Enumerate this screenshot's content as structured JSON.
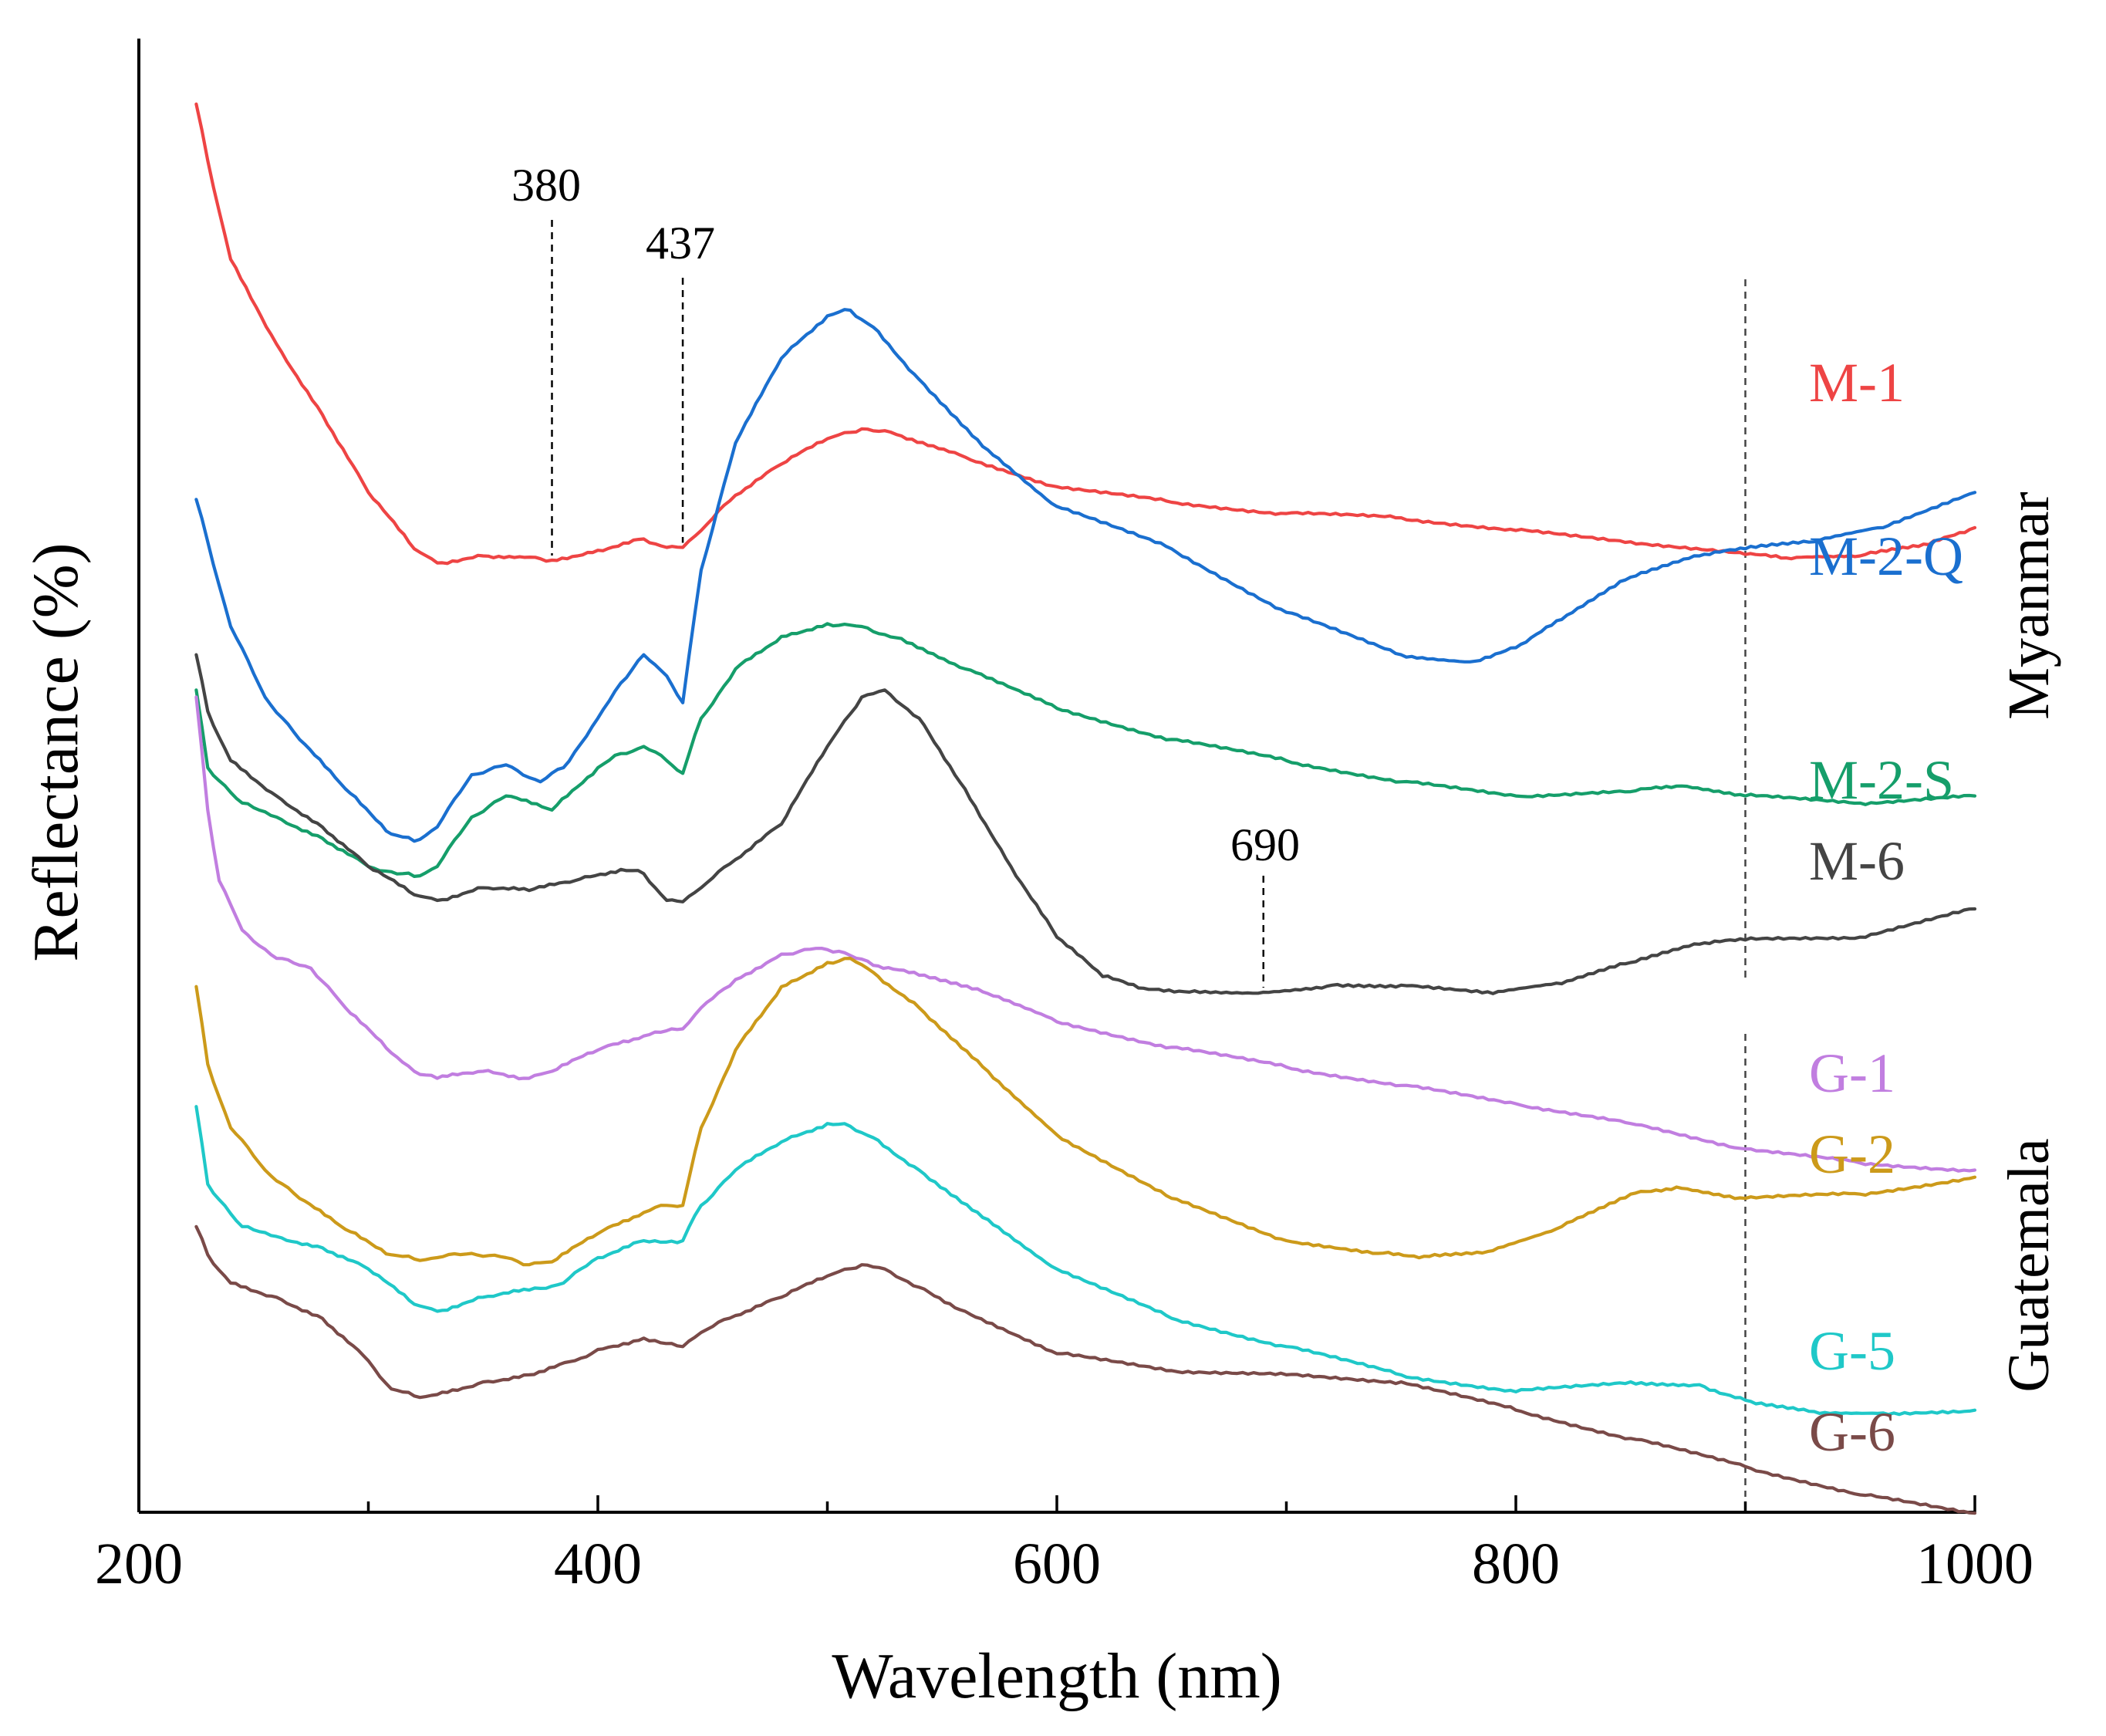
{
  "chart_data": {
    "type": "line",
    "xlabel": "Wavelength (nm)",
    "ylabel": "Reflectance (%)",
    "xlim": [
      200,
      1000
    ],
    "ylim": [
      0,
      100
    ],
    "xticks": [
      200,
      400,
      600,
      800,
      1000
    ],
    "grid": false,
    "ref_line_x": 900,
    "groups": [
      {
        "name": "Myanmar",
        "series": [
          "M-1",
          "M-2-Q",
          "M-2-S",
          "M-6"
        ]
      },
      {
        "name": "Guatemala",
        "series": [
          "G-1",
          "G-2",
          "G-5",
          "G-6"
        ]
      }
    ],
    "series": [
      {
        "name": "M-1",
        "color": "#ee4444",
        "x": [
          225,
          230,
          240,
          260,
          280,
          300,
          320,
          330,
          350,
          375,
          380,
          400,
          420,
          430,
          437,
          445,
          460,
          480,
          500,
          515,
          530,
          560,
          600,
          650,
          700,
          750,
          800,
          850,
          900,
          920,
          950,
          980,
          1000
        ],
        "y": [
          97.0,
          93.0,
          86.0,
          80.0,
          75.0,
          69.5,
          65.5,
          64.5,
          65.0,
          64.8,
          64.7,
          65.4,
          66.2,
          65.6,
          65.6,
          66.8,
          69.3,
          71.5,
          73.3,
          74.0,
          73.6,
          72.0,
          69.9,
          68.8,
          68.0,
          67.7,
          66.8,
          66.0,
          65.1,
          64.8,
          65.0,
          65.8,
          67.0
        ]
      },
      {
        "name": "M-2-Q",
        "color": "#1a6fcf",
        "x": [
          225,
          230,
          240,
          255,
          270,
          290,
          310,
          320,
          330,
          345,
          360,
          375,
          385,
          400,
          410,
          420,
          430,
          437,
          445,
          460,
          480,
          500,
          510,
          520,
          540,
          570,
          600,
          650,
          700,
          750,
          780,
          800,
          820,
          850,
          880,
          900,
          930,
          960,
          1000
        ],
        "y": [
          69.0,
          66.0,
          60.0,
          55.0,
          52.0,
          48.5,
          45.3,
          44.8,
          45.8,
          49.5,
          50.2,
          49.0,
          50.0,
          53.5,
          56.0,
          58.0,
          56.5,
          54.6,
          64.0,
          73.0,
          79.0,
          82.0,
          82.4,
          81.2,
          77.5,
          72.5,
          68.5,
          65.5,
          61.0,
          58.0,
          57.5,
          58.5,
          60.5,
          63.5,
          65.0,
          65.5,
          66.0,
          67.0,
          69.5
        ]
      },
      {
        "name": "M-2-S",
        "color": "#159e6a",
        "x": [
          225,
          230,
          245,
          260,
          280,
          300,
          315,
          320,
          330,
          345,
          360,
          380,
          400,
          410,
          420,
          430,
          437,
          445,
          460,
          480,
          500,
          515,
          530,
          560,
          600,
          650,
          700,
          750,
          800,
          850,
          870,
          900,
          950,
          1000
        ],
        "y": [
          55.5,
          50.0,
          47.5,
          46.5,
          45.0,
          43.0,
          42.5,
          42.3,
          43.0,
          46.5,
          48.0,
          47.0,
          50.0,
          51.0,
          51.5,
          50.5,
          49.6,
          53.5,
          57.0,
          59.3,
          60.2,
          60.0,
          59.2,
          57.0,
          54.2,
          52.0,
          50.5,
          49.0,
          48.0,
          48.3,
          48.7,
          48.0,
          47.5,
          48.0
        ]
      },
      {
        "name": "M-6",
        "color": "#444444",
        "x": [
          225,
          230,
          240,
          260,
          280,
          300,
          320,
          330,
          350,
          370,
          390,
          410,
          420,
          430,
          437,
          445,
          460,
          480,
          500,
          515,
          525,
          540,
          560,
          580,
          600,
          620,
          640,
          660,
          690,
          720,
          750,
          790,
          820,
          850,
          880,
          900,
          950,
          1000
        ],
        "y": [
          58.0,
          54.0,
          50.5,
          48.0,
          45.8,
          43.0,
          41.0,
          40.6,
          41.5,
          41.3,
          42.0,
          42.8,
          42.5,
          40.6,
          40.5,
          41.5,
          43.5,
          46.0,
          51.5,
          55.0,
          55.5,
          53.5,
          48.5,
          43.0,
          38.0,
          35.2,
          34.3,
          34.2,
          34.1,
          34.6,
          34.6,
          34.0,
          34.7,
          36.2,
          37.5,
          37.8,
          38.0,
          40.0
        ]
      },
      {
        "name": "G-1",
        "color": "#c17ee0",
        "x": [
          225,
          230,
          235,
          245,
          260,
          275,
          290,
          310,
          320,
          330,
          350,
          370,
          380,
          400,
          420,
          437,
          445,
          460,
          480,
          495,
          505,
          520,
          540,
          570,
          600,
          650,
          700,
          750,
          800,
          850,
          900,
          950,
          1000
        ],
        "y": [
          55.0,
          47.0,
          42.0,
          38.5,
          36.5,
          35.8,
          33.0,
          29.8,
          28.5,
          28.0,
          28.5,
          28.0,
          28.5,
          30.0,
          31.0,
          31.5,
          33.0,
          35.0,
          36.8,
          37.2,
          37.0,
          36.0,
          35.3,
          34.0,
          32.0,
          30.2,
          28.8,
          27.5,
          26.2,
          24.8,
          23.0,
          22.0,
          21.5
        ]
      },
      {
        "name": "G-2",
        "color": "#cc9a1a",
        "x": [
          225,
          230,
          240,
          255,
          270,
          290,
          310,
          320,
          330,
          345,
          360,
          370,
          380,
          400,
          420,
          430,
          437,
          445,
          460,
          480,
          500,
          510,
          520,
          540,
          570,
          600,
          650,
          700,
          740,
          760,
          790,
          820,
          850,
          870,
          900,
          950,
          1000
        ],
        "y": [
          34.5,
          29.0,
          24.5,
          21.5,
          19.5,
          17.3,
          15.5,
          15.2,
          15.3,
          15.6,
          15.3,
          14.8,
          15.0,
          17.0,
          18.5,
          19.0,
          19.0,
          24.5,
          30.0,
          34.5,
          36.2,
          36.5,
          35.5,
          33.0,
          28.5,
          24.0,
          19.5,
          16.5,
          15.6,
          15.4,
          15.8,
          17.5,
          19.8,
          20.3,
          19.5,
          19.8,
          21.0
        ]
      },
      {
        "name": "G-5",
        "color": "#1fc8c8",
        "x": [
          225,
          230,
          245,
          260,
          280,
          300,
          320,
          330,
          350,
          370,
          385,
          400,
          420,
          437,
          445,
          460,
          480,
          500,
          510,
          520,
          540,
          570,
          600,
          650,
          700,
          750,
          800,
          850,
          880,
          900,
          930,
          960,
          1000
        ],
        "y": [
          26.0,
          20.5,
          17.5,
          16.8,
          16.0,
          14.5,
          12.0,
          11.5,
          12.5,
          13.0,
          13.5,
          15.3,
          16.5,
          16.5,
          19.0,
          21.5,
          23.5,
          24.8,
          24.6,
          23.8,
          21.5,
          18.0,
          14.5,
          11.0,
          9.0,
          7.0,
          5.8,
          6.5,
          6.3,
          5.2,
          4.4,
          4.3,
          4.5
        ]
      },
      {
        "name": "G-6",
        "color": "#7a4a48",
        "x": [
          225,
          230,
          240,
          260,
          280,
          300,
          310,
          320,
          330,
          350,
          370,
          390,
          400,
          420,
          437,
          445,
          460,
          480,
          500,
          515,
          525,
          540,
          560,
          600,
          650,
          700,
          750,
          800,
          850,
          900,
          950,
          1000
        ],
        "y": [
          17.5,
          15.5,
          13.5,
          12.5,
          11.0,
          8.0,
          6.0,
          5.5,
          5.6,
          6.5,
          7.0,
          8.0,
          8.8,
          9.6,
          9.0,
          10.0,
          11.2,
          12.5,
          14.0,
          14.8,
          14.5,
          13.2,
          11.5,
          8.5,
          7.3,
          7.0,
          6.5,
          4.5,
          2.5,
          0.5,
          -1.5,
          -2.8
        ]
      }
    ],
    "annotations": [
      {
        "label": "380",
        "x": 380
      },
      {
        "label": "437",
        "x": 437
      },
      {
        "label": "690",
        "x": 690
      }
    ]
  }
}
